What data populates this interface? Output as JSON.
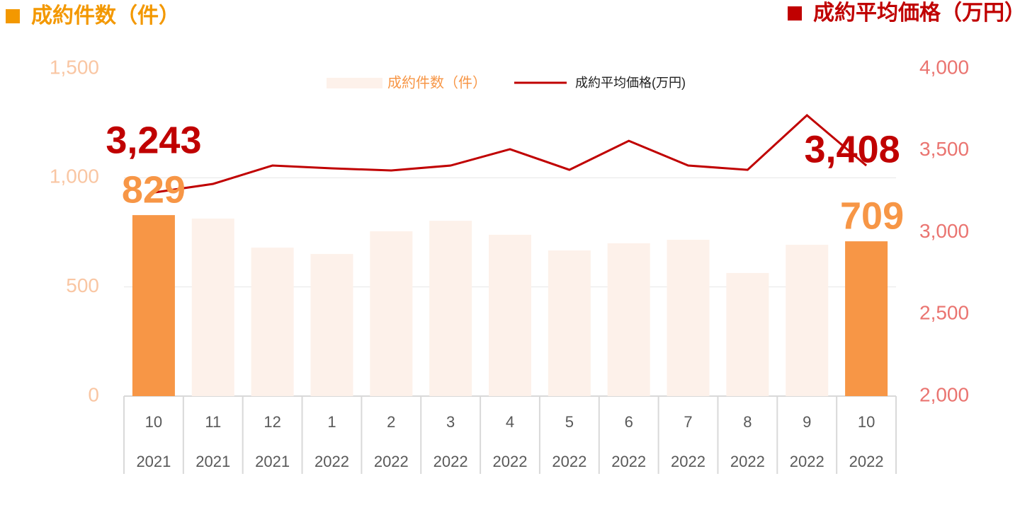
{
  "chart_data": {
    "type": "bar_line",
    "y_label": "成約件数（件）",
    "y2_label": "成約平均価格（万円）",
    "categories": [
      "10",
      "11",
      "12",
      "1",
      "2",
      "3",
      "4",
      "5",
      "6",
      "7",
      "8",
      "9",
      "10"
    ],
    "category_groups": [
      "2021",
      "2021",
      "2021",
      "2022",
      "2022",
      "2022",
      "2022",
      "2022",
      "2022",
      "2022",
      "2022",
      "2022",
      "2022"
    ],
    "series": [
      {
        "name": "成約件数（件）",
        "type": "bar",
        "color": "#fdf1ea",
        "colors": [
          "#f79646",
          "#fdf1ea",
          "#fdf1ea",
          "#fdf1ea",
          "#fdf1ea",
          "#fdf1ea",
          "#fdf1ea",
          "#fdf1ea",
          "#fdf1ea",
          "#fdf1ea",
          "#fdf1ea",
          "#fdf1ea",
          "#f79646"
        ],
        "values": [
          829,
          813,
          680,
          651,
          755,
          803,
          739,
          667,
          700,
          716,
          564,
          693,
          709
        ],
        "value_labels": [
          "829",
          null,
          null,
          null,
          null,
          null,
          null,
          null,
          null,
          null,
          null,
          null,
          "709"
        ]
      },
      {
        "name": "成約平均価格(万円)",
        "type": "line",
        "axis": "y2",
        "color": "#c00000",
        "values": [
          3243,
          3296,
          3408,
          3391,
          3378,
          3408,
          3508,
          3382,
          3559,
          3408,
          3382,
          3715,
          3408
        ],
        "value_labels": [
          "3,243",
          null,
          null,
          null,
          null,
          null,
          null,
          null,
          null,
          null,
          null,
          null,
          "3,408"
        ]
      }
    ],
    "ylim": [
      0,
      1500
    ],
    "yticks": [
      0,
      500,
      {
        "value": 1000,
        "label": "1,000"
      },
      {
        "value": 1500,
        "label": "1,500"
      }
    ],
    "y2lim": [
      2000,
      4000
    ],
    "y2ticks": [
      {
        "value": 2000,
        "label": "2,000"
      },
      {
        "value": 2500,
        "label": "2,500"
      },
      {
        "value": 3000,
        "label": "3,000"
      },
      {
        "value": 3500,
        "label": "3,500"
      },
      {
        "value": 4000,
        "label": "4,000"
      }
    ],
    "grid": true
  }
}
